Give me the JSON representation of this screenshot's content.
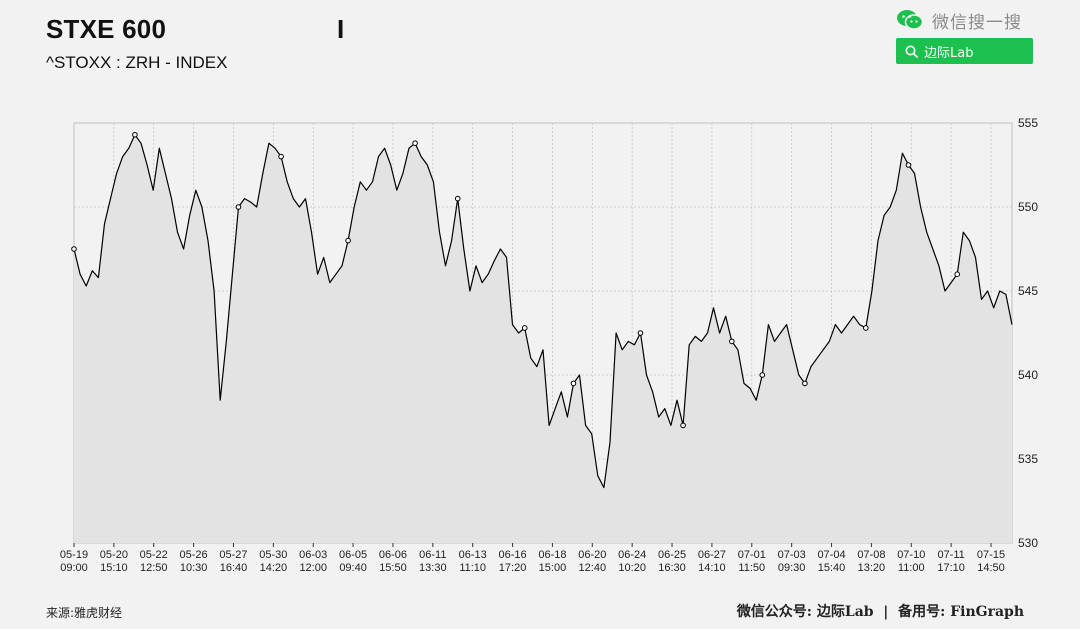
{
  "header": {
    "title": "STXE 600",
    "cursor_char": "I",
    "subtitle": "^STOXX : ZRH - INDEX"
  },
  "wechat": {
    "search_text": "微信搜一搜",
    "button_label": "边际Lab",
    "brand_color": "#1dbf4f"
  },
  "footer": {
    "source": "来源:雅虎财经",
    "credit": "微信公众号: 边际Lab  |  备用号: FinGraph"
  },
  "chart_data": {
    "type": "area",
    "title": "STXE 600",
    "subtitle": "^STOXX : ZRH - INDEX",
    "ylim": [
      530,
      555
    ],
    "yticks": [
      530,
      535,
      540,
      545,
      550,
      555
    ],
    "y_axis_side": "right",
    "grid": true,
    "line_color": "#000000",
    "fill_color": "#e3e3e3",
    "xtick_labels": [
      [
        "05-19",
        "09:00"
      ],
      [
        "05-20",
        "15:10"
      ],
      [
        "05-22",
        "12:50"
      ],
      [
        "05-26",
        "10:30"
      ],
      [
        "05-27",
        "16:40"
      ],
      [
        "05-30",
        "14:20"
      ],
      [
        "06-03",
        "12:00"
      ],
      [
        "06-05",
        "09:40"
      ],
      [
        "06-06",
        "15:50"
      ],
      [
        "06-11",
        "13:30"
      ],
      [
        "06-13",
        "11:10"
      ],
      [
        "06-16",
        "17:20"
      ],
      [
        "06-18",
        "15:00"
      ],
      [
        "06-20",
        "12:40"
      ],
      [
        "06-24",
        "10:20"
      ],
      [
        "06-25",
        "16:30"
      ],
      [
        "06-27",
        "14:10"
      ],
      [
        "07-01",
        "11:50"
      ],
      [
        "07-03",
        "09:30"
      ],
      [
        "07-04",
        "15:40"
      ],
      [
        "07-08",
        "13:20"
      ],
      [
        "07-10",
        "11:00"
      ],
      [
        "07-11",
        "17:10"
      ],
      [
        "07-15",
        "14:50"
      ]
    ],
    "values": [
      547.5,
      546.0,
      545.3,
      546.2,
      545.8,
      549.0,
      550.5,
      552.0,
      553.0,
      553.5,
      554.3,
      553.8,
      552.5,
      551.0,
      553.5,
      552.0,
      550.5,
      548.5,
      547.5,
      549.5,
      551.0,
      550.0,
      548.0,
      545.0,
      538.5,
      542.0,
      546.0,
      550.0,
      550.5,
      550.3,
      550.0,
      552.0,
      553.8,
      553.5,
      553.0,
      551.5,
      550.5,
      550.0,
      550.5,
      548.5,
      546.0,
      547.0,
      545.5,
      546.0,
      546.5,
      548.0,
      550.0,
      551.5,
      551.0,
      551.5,
      553.0,
      553.5,
      552.5,
      551.0,
      552.0,
      553.5,
      553.8,
      553.0,
      552.5,
      551.5,
      548.5,
      546.5,
      548.0,
      550.5,
      547.5,
      545.0,
      546.5,
      545.5,
      546.0,
      546.8,
      547.5,
      547.0,
      543.0,
      542.5,
      542.8,
      541.0,
      540.5,
      541.5,
      537.0,
      538.0,
      539.0,
      537.5,
      539.5,
      540.0,
      537.0,
      536.5,
      534.0,
      533.3,
      536.0,
      542.5,
      541.5,
      542.0,
      541.8,
      542.5,
      540.0,
      539.0,
      537.5,
      538.0,
      537.0,
      538.5,
      537.0,
      541.8,
      542.3,
      542.0,
      542.5,
      544.0,
      542.5,
      543.5,
      542.0,
      541.5,
      539.5,
      539.2,
      538.5,
      540.0,
      543.0,
      542.0,
      542.5,
      543.0,
      541.5,
      540.0,
      539.5,
      540.5,
      541.0,
      541.5,
      542.0,
      543.0,
      542.5,
      543.0,
      543.5,
      543.0,
      542.8,
      545.0,
      548.0,
      549.5,
      550.0,
      551.0,
      553.2,
      552.5,
      552.0,
      550.0,
      548.5,
      547.5,
      546.5,
      545.0,
      545.5,
      546.0,
      548.5,
      548.0,
      547.0,
      544.5,
      545.0,
      544.0,
      545.0,
      544.8,
      543.0
    ],
    "markers_at_index": [
      0,
      10,
      27,
      34,
      45,
      56,
      63,
      74,
      82,
      93,
      100,
      108,
      113,
      120,
      130,
      137,
      145
    ]
  }
}
